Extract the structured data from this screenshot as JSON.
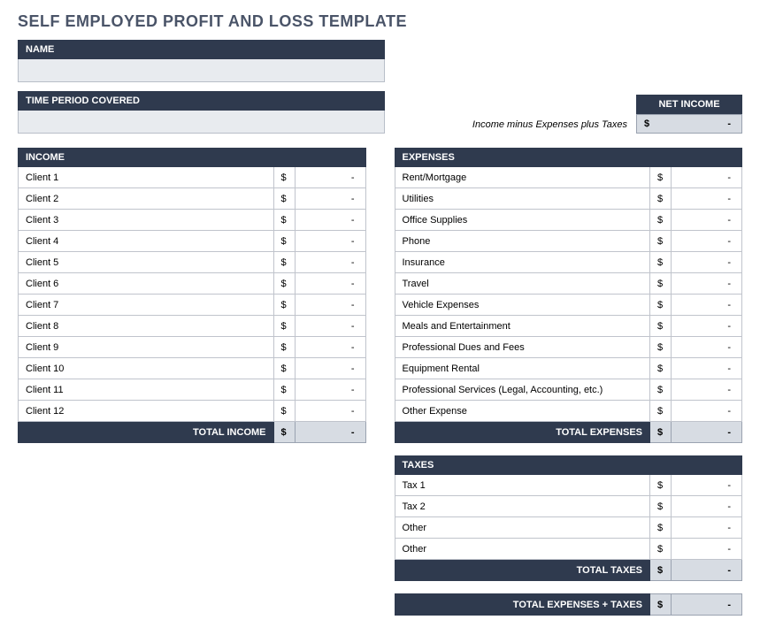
{
  "title": "SELF EMPLOYED PROFIT AND LOSS TEMPLATE",
  "colors": {
    "header_bg": "#2f3a4e",
    "header_text": "#ffffff",
    "field_bg": "#e8ebef",
    "total_bg": "#d7dce3",
    "border": "#c0c4cc",
    "title_color": "#4a5468"
  },
  "name": {
    "label": "NAME",
    "value": ""
  },
  "period": {
    "label": "TIME PERIOD COVERED",
    "value": ""
  },
  "net": {
    "label": "NET INCOME",
    "formula": "Income minus Expenses plus Taxes",
    "currency": "$",
    "amount": "-"
  },
  "income": {
    "header": "INCOME",
    "rows": [
      {
        "label": "Client 1",
        "currency": "$",
        "amount": "-"
      },
      {
        "label": "Client 2",
        "currency": "$",
        "amount": "-"
      },
      {
        "label": "Client 3",
        "currency": "$",
        "amount": "-"
      },
      {
        "label": "Client 4",
        "currency": "$",
        "amount": "-"
      },
      {
        "label": "Client 5",
        "currency": "$",
        "amount": "-"
      },
      {
        "label": "Client 6",
        "currency": "$",
        "amount": "-"
      },
      {
        "label": "Client 7",
        "currency": "$",
        "amount": "-"
      },
      {
        "label": "Client 8",
        "currency": "$",
        "amount": "-"
      },
      {
        "label": "Client 9",
        "currency": "$",
        "amount": "-"
      },
      {
        "label": "Client 10",
        "currency": "$",
        "amount": "-"
      },
      {
        "label": "Client 11",
        "currency": "$",
        "amount": "-"
      },
      {
        "label": "Client 12",
        "currency": "$",
        "amount": "-"
      }
    ],
    "total": {
      "label": "TOTAL INCOME",
      "currency": "$",
      "amount": "-"
    }
  },
  "expenses": {
    "header": "EXPENSES",
    "rows": [
      {
        "label": "Rent/Mortgage",
        "currency": "$",
        "amount": "-"
      },
      {
        "label": "Utilities",
        "currency": "$",
        "amount": "-"
      },
      {
        "label": "Office Supplies",
        "currency": "$",
        "amount": "-"
      },
      {
        "label": "Phone",
        "currency": "$",
        "amount": "-"
      },
      {
        "label": "Insurance",
        "currency": "$",
        "amount": "-"
      },
      {
        "label": "Travel",
        "currency": "$",
        "amount": "-"
      },
      {
        "label": "Vehicle Expenses",
        "currency": "$",
        "amount": "-"
      },
      {
        "label": "Meals and Entertainment",
        "currency": "$",
        "amount": "-"
      },
      {
        "label": "Professional Dues and Fees",
        "currency": "$",
        "amount": "-"
      },
      {
        "label": "Equipment Rental",
        "currency": "$",
        "amount": "-"
      },
      {
        "label": "Professional Services (Legal, Accounting, etc.)",
        "currency": "$",
        "amount": "-"
      },
      {
        "label": "Other Expense",
        "currency": "$",
        "amount": "-"
      }
    ],
    "total": {
      "label": "TOTAL EXPENSES",
      "currency": "$",
      "amount": "-"
    }
  },
  "taxes": {
    "header": "TAXES",
    "rows": [
      {
        "label": "Tax 1",
        "currency": "$",
        "amount": "-"
      },
      {
        "label": "Tax 2",
        "currency": "$",
        "amount": "-"
      },
      {
        "label": "Other",
        "currency": "$",
        "amount": "-"
      },
      {
        "label": "Other",
        "currency": "$",
        "amount": "-"
      }
    ],
    "total": {
      "label": "TOTAL TAXES",
      "currency": "$",
      "amount": "-"
    }
  },
  "grand": {
    "label": "TOTAL EXPENSES + TAXES",
    "currency": "$",
    "amount": "-"
  }
}
